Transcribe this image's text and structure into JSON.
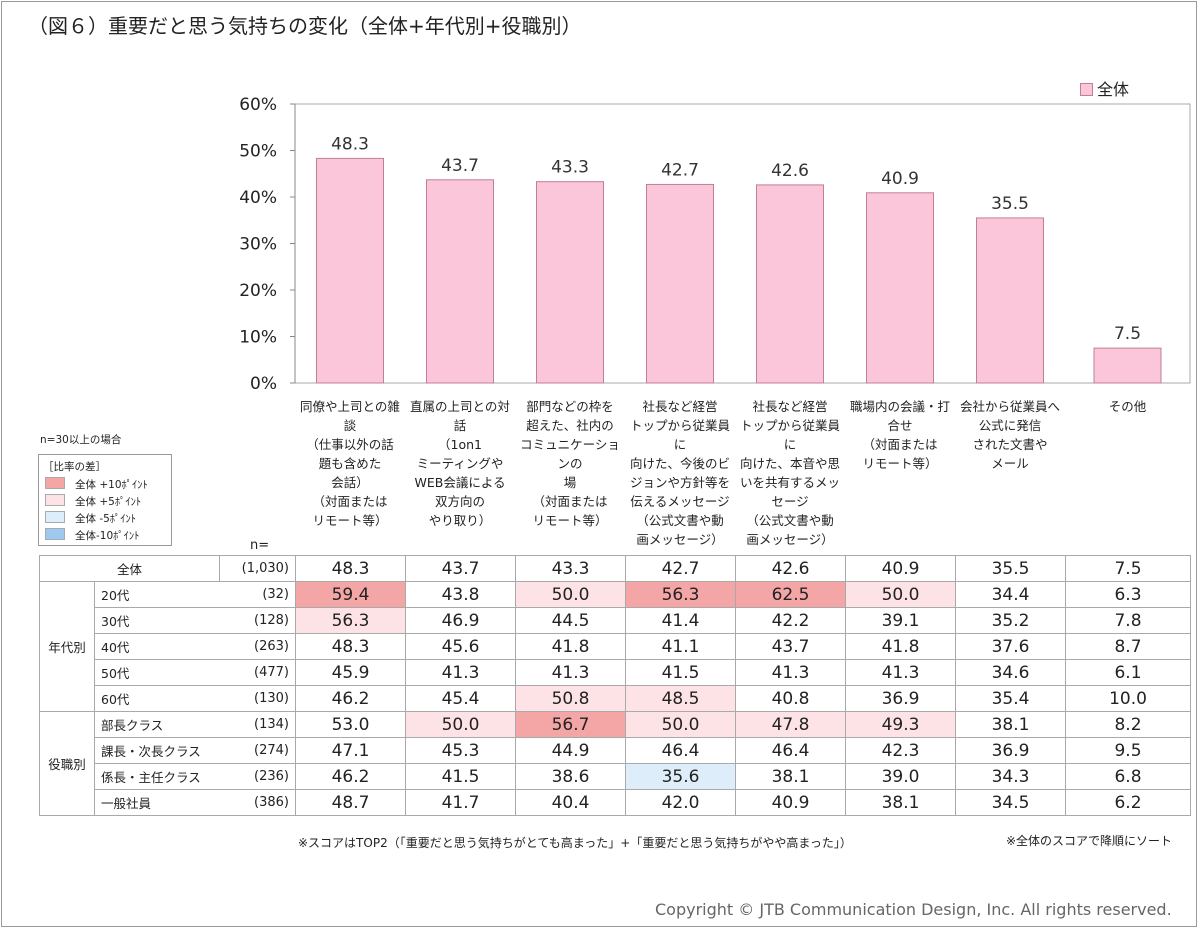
{
  "title": "（図６）重要だと思う気持ちの変化（全体+年代別+役職別）",
  "legend": {
    "label": "全体",
    "color": "#fbc6da"
  },
  "chart_data": {
    "type": "bar",
    "categories": [
      "同僚や上司との雑\n談\n（仕事以外の話\n題も含めた\n会話）\n（対面または\nリモート等）",
      "直属の上司との対\n話\n（1on1\nミーティングや\nWEB会議による\n双方向の\nやり取り）",
      "部門などの枠を\n超えた、社内の\nコミュニケーションの\n場\n（対面または\nリモート等）",
      "社長など経営\nトップから従業員に\n向けた、今後のビ\nジョンや方針等を\n伝えるメッセージ\n（公式文書や動\n画メッセージ）",
      "社長など経営\nトップから従業員に\n向けた、本音や思\nいを共有するメッ\nセージ\n（公式文書や動\n画メッセージ）",
      "職場内の会議・打\n合せ\n（対面または\nリモート等）",
      "会社から従業員へ\n公式に発信\nされた文書や\nメール",
      "その他"
    ],
    "series": [
      {
        "name": "全体",
        "values": [
          48.3,
          43.7,
          43.3,
          42.7,
          42.6,
          40.9,
          35.5,
          7.5
        ]
      }
    ],
    "yticks": [
      "60%",
      "50%",
      "40%",
      "30%",
      "20%",
      "10%",
      "0%"
    ],
    "ylim": [
      0,
      60
    ],
    "bar_color": "#fbc6da",
    "bar_edge": "#bf7f99"
  },
  "key": {
    "condition": "n=30以上の場合",
    "title": "［比率の差］",
    "items": [
      {
        "label": "全体 +10ﾎﾟｲﾝﾄ",
        "color": "#f4a5a5"
      },
      {
        "label": "全体 +5ﾎﾟｲﾝﾄ",
        "color": "#fde3e6"
      },
      {
        "label": "全体 -5ﾎﾟｲﾝﾄ",
        "color": "#ddeefa"
      },
      {
        "label": "全体-10ﾎﾟｲﾝﾄ",
        "color": "#9ccaf0"
      }
    ]
  },
  "n_label": "n=",
  "table": {
    "rows": [
      {
        "group": "",
        "label": "全体",
        "n": "(1,030)",
        "values": [
          "48.3",
          "43.7",
          "43.3",
          "42.7",
          "42.6",
          "40.9",
          "35.5",
          "7.5"
        ],
        "hl": [
          "",
          "",
          "",
          "",
          "",
          "",
          "",
          ""
        ]
      },
      {
        "group": "年代別",
        "label": "20代",
        "n": "(32)",
        "values": [
          "59.4",
          "43.8",
          "50.0",
          "56.3",
          "62.5",
          "50.0",
          "34.4",
          "6.3"
        ],
        "hl": [
          "hp10",
          "",
          "hp5",
          "hp10",
          "hp10",
          "hp5",
          "",
          ""
        ]
      },
      {
        "group": "年代別",
        "label": "30代",
        "n": "(128)",
        "values": [
          "56.3",
          "46.9",
          "44.5",
          "41.4",
          "42.2",
          "39.1",
          "35.2",
          "7.8"
        ],
        "hl": [
          "hp5",
          "",
          "",
          "",
          "",
          "",
          "",
          ""
        ]
      },
      {
        "group": "年代別",
        "label": "40代",
        "n": "(263)",
        "values": [
          "48.3",
          "45.6",
          "41.8",
          "41.1",
          "43.7",
          "41.8",
          "37.6",
          "8.7"
        ],
        "hl": [
          "",
          "",
          "",
          "",
          "",
          "",
          "",
          ""
        ]
      },
      {
        "group": "年代別",
        "label": "50代",
        "n": "(477)",
        "values": [
          "45.9",
          "41.3",
          "41.3",
          "41.5",
          "41.3",
          "41.3",
          "34.6",
          "6.1"
        ],
        "hl": [
          "",
          "",
          "",
          "",
          "",
          "",
          "",
          ""
        ]
      },
      {
        "group": "年代別",
        "label": "60代",
        "n": "(130)",
        "values": [
          "46.2",
          "45.4",
          "50.8",
          "48.5",
          "40.8",
          "36.9",
          "35.4",
          "10.0"
        ],
        "hl": [
          "",
          "",
          "hp5",
          "hp5",
          "",
          "",
          "",
          ""
        ]
      },
      {
        "group": "役職別",
        "label": "部長クラス",
        "n": "(134)",
        "values": [
          "53.0",
          "50.0",
          "56.7",
          "50.0",
          "47.8",
          "49.3",
          "38.1",
          "8.2"
        ],
        "hl": [
          "",
          "hp5",
          "hp10",
          "hp5",
          "hp5",
          "hp5",
          "",
          ""
        ]
      },
      {
        "group": "役職別",
        "label": "課長・次長クラス",
        "n": "(274)",
        "values": [
          "47.1",
          "45.3",
          "44.9",
          "46.4",
          "46.4",
          "42.3",
          "36.9",
          "9.5"
        ],
        "hl": [
          "",
          "",
          "",
          "",
          "",
          "",
          "",
          ""
        ]
      },
      {
        "group": "役職別",
        "label": "係長・主任クラス",
        "n": "(236)",
        "values": [
          "46.2",
          "41.5",
          "38.6",
          "35.6",
          "38.1",
          "39.0",
          "34.3",
          "6.8"
        ],
        "hl": [
          "",
          "",
          "",
          "hm5",
          "",
          "",
          "",
          ""
        ]
      },
      {
        "group": "役職別",
        "label": "一般社員",
        "n": "(386)",
        "values": [
          "48.7",
          "41.7",
          "40.4",
          "42.0",
          "40.9",
          "38.1",
          "34.5",
          "6.2"
        ],
        "hl": [
          "",
          "",
          "",
          "",
          "",
          "",
          "",
          ""
        ]
      }
    ]
  },
  "notes": {
    "score": "※スコアはTOP2（「重要だと思う気持ちがとても高まった」+「重要だと思う気持ちがやや高まった」）",
    "sort": "※全体のスコアで降順にソート"
  },
  "copyright": "Copyright © JTB Communication Design, Inc. All rights reserved."
}
